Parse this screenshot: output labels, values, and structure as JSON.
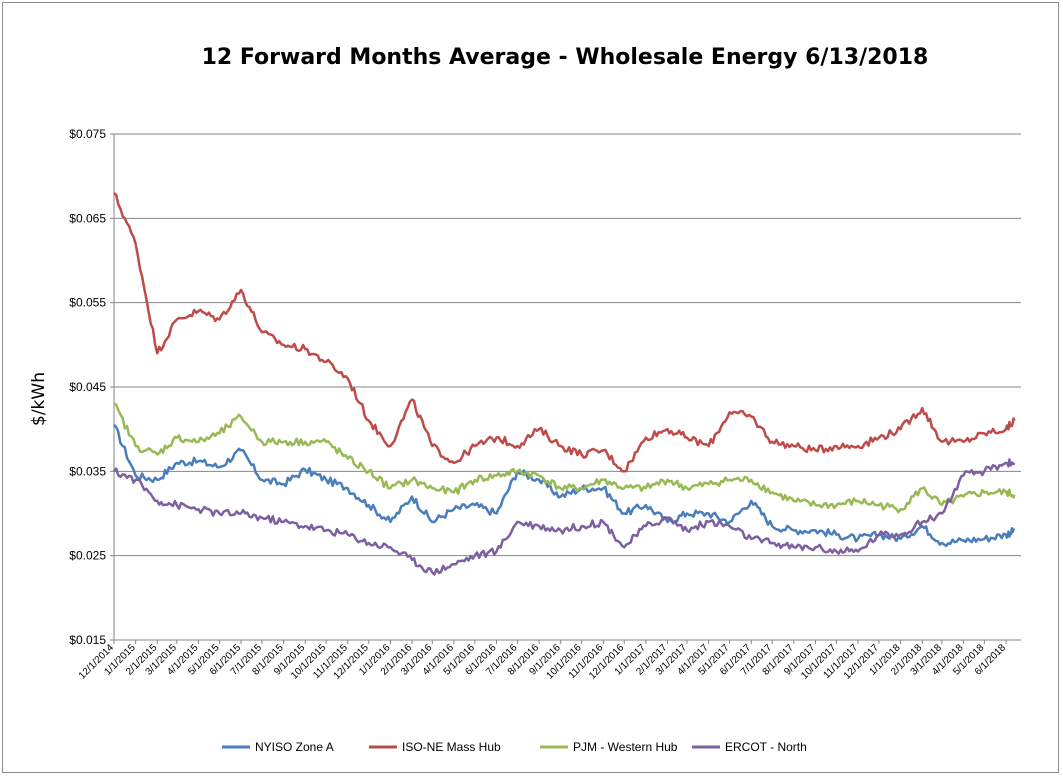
{
  "chart_data": {
    "type": "line",
    "title": "12 Forward Months Average - Wholesale Energy 6/13/2018",
    "xlabel": "",
    "ylabel": "$/kWh",
    "ylim": [
      0.015,
      0.075
    ],
    "yticks": [
      0.015,
      0.025,
      0.035,
      0.045,
      0.055,
      0.065,
      0.075
    ],
    "ytick_labels": [
      "$0.015",
      "$0.025",
      "$0.035",
      "$0.045",
      "$0.055",
      "$0.065",
      "$0.075"
    ],
    "grid": "horizontal",
    "legend_position": "bottom",
    "x_tick_labels": [
      "12/1/2014",
      "1/1/2015",
      "2/1/2015",
      "3/1/2015",
      "4/1/2015",
      "5/1/2015",
      "6/1/2015",
      "7/1/2015",
      "8/1/2015",
      "9/1/2015",
      "10/1/2015",
      "11/1/2015",
      "12/1/2015",
      "1/1/2016",
      "2/1/2016",
      "3/1/2016",
      "4/1/2016",
      "5/1/2016",
      "6/1/2016",
      "7/1/2016",
      "8/1/2016",
      "9/1/2016",
      "10/1/2016",
      "11/1/2016",
      "12/1/2016",
      "1/1/2017",
      "2/1/2017",
      "3/1/2017",
      "4/1/2017",
      "5/1/2017",
      "6/1/2017",
      "7/1/2017",
      "8/1/2017",
      "9/1/2017",
      "10/1/2017",
      "11/1/2017",
      "12/1/2017",
      "1/1/2018",
      "2/1/2018",
      "3/1/2018",
      "4/1/2018",
      "5/1/2018",
      "6/1/2018"
    ],
    "x": [
      "12/1/2014",
      "1/1/2015",
      "2/1/2015",
      "3/1/2015",
      "4/1/2015",
      "5/1/2015",
      "6/1/2015",
      "7/1/2015",
      "8/1/2015",
      "9/1/2015",
      "10/1/2015",
      "11/1/2015",
      "12/1/2015",
      "1/1/2016",
      "2/1/2016",
      "3/1/2016",
      "4/1/2016",
      "5/1/2016",
      "6/1/2016",
      "7/1/2016",
      "8/1/2016",
      "9/1/2016",
      "10/1/2016",
      "11/1/2016",
      "12/1/2016",
      "1/1/2017",
      "2/1/2017",
      "3/1/2017",
      "4/1/2017",
      "5/1/2017",
      "6/1/2017",
      "7/1/2017",
      "8/1/2017",
      "9/1/2017",
      "10/1/2017",
      "11/1/2017",
      "12/1/2017",
      "1/1/2018",
      "2/1/2018",
      "3/1/2018",
      "4/1/2018",
      "5/1/2018",
      "6/1/2018",
      "6/13/2018"
    ],
    "series": [
      {
        "name": "NYISO Zone A",
        "color": "#4a7ebb",
        "values": [
          0.0405,
          0.0345,
          0.034,
          0.036,
          0.0362,
          0.0355,
          0.0375,
          0.034,
          0.0335,
          0.0352,
          0.034,
          0.033,
          0.031,
          0.029,
          0.032,
          0.029,
          0.0305,
          0.031,
          0.03,
          0.035,
          0.034,
          0.032,
          0.033,
          0.033,
          0.03,
          0.031,
          0.029,
          0.03,
          0.03,
          0.029,
          0.0315,
          0.0285,
          0.028,
          0.028,
          0.0275,
          0.027,
          0.0275,
          0.027,
          0.0285,
          0.0265,
          0.0268,
          0.027,
          0.0275,
          0.028
        ]
      },
      {
        "name": "ISO-NE Mass Hub",
        "color": "#be4b48",
        "values": [
          0.068,
          0.062,
          0.049,
          0.053,
          0.054,
          0.053,
          0.0565,
          0.0515,
          0.05,
          0.0495,
          0.048,
          0.046,
          0.041,
          0.038,
          0.0435,
          0.038,
          0.036,
          0.038,
          0.039,
          0.038,
          0.04,
          0.038,
          0.037,
          0.0375,
          0.035,
          0.039,
          0.04,
          0.039,
          0.038,
          0.042,
          0.0415,
          0.0385,
          0.038,
          0.0375,
          0.038,
          0.038,
          0.039,
          0.04,
          0.0425,
          0.0385,
          0.0385,
          0.0395,
          0.04,
          0.041
        ]
      },
      {
        "name": "PJM - Western Hub",
        "color": "#98b954",
        "values": [
          0.043,
          0.038,
          0.037,
          0.039,
          0.0385,
          0.0395,
          0.0415,
          0.0385,
          0.0385,
          0.0385,
          0.0385,
          0.0365,
          0.035,
          0.033,
          0.034,
          0.033,
          0.0325,
          0.034,
          0.0345,
          0.035,
          0.0345,
          0.033,
          0.033,
          0.034,
          0.033,
          0.033,
          0.034,
          0.033,
          0.0335,
          0.034,
          0.034,
          0.0325,
          0.0315,
          0.031,
          0.031,
          0.0315,
          0.031,
          0.0305,
          0.033,
          0.031,
          0.032,
          0.0325,
          0.0325,
          0.0322
        ]
      },
      {
        "name": "ERCOT - North",
        "color": "#7d60a0",
        "values": [
          0.035,
          0.034,
          0.0315,
          0.031,
          0.0305,
          0.03,
          0.03,
          0.0295,
          0.029,
          0.0285,
          0.028,
          0.0275,
          0.0265,
          0.026,
          0.0245,
          0.023,
          0.024,
          0.025,
          0.0255,
          0.029,
          0.0285,
          0.028,
          0.0285,
          0.029,
          0.026,
          0.0285,
          0.0295,
          0.028,
          0.029,
          0.0285,
          0.027,
          0.0265,
          0.026,
          0.026,
          0.0255,
          0.0255,
          0.0275,
          0.0275,
          0.029,
          0.03,
          0.0345,
          0.035,
          0.036,
          0.036
        ]
      }
    ]
  }
}
